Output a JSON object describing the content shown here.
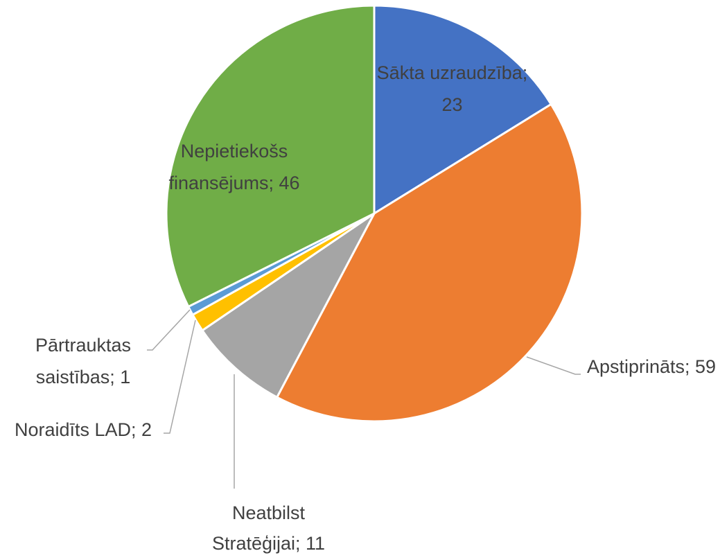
{
  "chart_data": {
    "type": "pie",
    "labels": [
      "Sākta uzraudzība; 23",
      "Apstiprināts; 59",
      "Neatbilst Stratēģijai; 11",
      "Noraidīts LAD; 2",
      "Pārtrauktas saistības; 1",
      "Nepietiekošs finansējums; 46"
    ],
    "values": [
      23,
      59,
      11,
      2,
      1,
      46
    ],
    "colors": [
      "#4472c4",
      "#ed7d31",
      "#a5a5a5",
      "#ffc000",
      "#5b9bd5",
      "#70ad47"
    ]
  }
}
